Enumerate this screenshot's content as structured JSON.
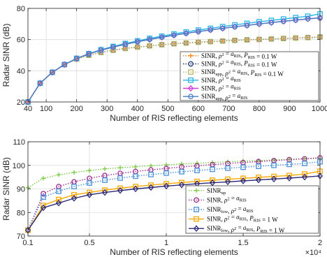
{
  "chart_data": [
    {
      "type": "line",
      "xlabel": "Number of RIS reflecting elements",
      "ylabel": "Radar SINR (dB)",
      "xlim": [
        40,
        1000
      ],
      "ylim": [
        20,
        80
      ],
      "xticks": [
        40,
        100,
        200,
        300,
        400,
        500,
        600,
        700,
        800,
        900,
        1000
      ],
      "yticks": [
        20,
        40,
        60,
        80
      ],
      "grid": true,
      "legend_position": "bottom-right",
      "x": [
        40,
        80,
        120,
        160,
        200,
        240,
        280,
        320,
        360,
        400,
        440,
        480,
        520,
        560,
        600,
        640,
        680,
        720,
        760,
        800,
        840,
        880,
        920,
        960,
        1000
      ],
      "series": [
        {
          "name": "SINR, ρ² = a_RIS, P_RIS = 0.1 W",
          "color": "#ff7f0e",
          "style": "dotted",
          "marker": "plus",
          "values": [
            20,
            32,
            39,
            44,
            47.5,
            50,
            51.8,
            53.2,
            54.3,
            55.2,
            56,
            56.7,
            57.3,
            57.8,
            58.3,
            58.7,
            59.1,
            59.5,
            59.8,
            60.1,
            60.4,
            60.7,
            61,
            61.3,
            61.5
          ]
        },
        {
          "name": "SINR, ρ² = a_RIS, P_RIS = 0.1 W",
          "color": "#1f3a6e",
          "style": "dotted",
          "marker": "circle",
          "values": [
            20,
            32,
            39,
            44,
            47.5,
            50,
            51.8,
            53.2,
            54.3,
            55.2,
            56,
            56.7,
            57.3,
            57.8,
            58.3,
            58.7,
            59.1,
            59.5,
            59.8,
            60.1,
            60.4,
            60.7,
            61,
            61.3,
            61.6
          ]
        },
        {
          "name": "SINR_app, ρ² = a_RIS, P_RIS = 0.1 W",
          "color": "#b8b86a",
          "style": "dotted",
          "marker": "square",
          "values": [
            20,
            32,
            39,
            44,
            47.5,
            50,
            51.8,
            53.2,
            54.3,
            55.2,
            56,
            56.7,
            57.3,
            57.8,
            58.3,
            58.7,
            59.1,
            59.5,
            59.8,
            60.1,
            60.4,
            60.7,
            61,
            61.3,
            61.7
          ]
        },
        {
          "name": "SINR, ρ² = a_RIS",
          "color": "#29b5e8",
          "style": "solid",
          "marker": "square",
          "values": [
            20,
            32,
            39,
            44,
            48,
            51,
            53.5,
            55.6,
            57.5,
            59.2,
            60.8,
            62.2,
            63.6,
            64.9,
            66.1,
            67.2,
            68.3,
            69.4,
            70.4,
            71.4,
            72.3,
            73.2,
            74.1,
            75,
            76.5
          ]
        },
        {
          "name": "SINR, ρ² = a_RIS",
          "color": "#d63ad6",
          "style": "solid",
          "marker": "diamond",
          "values": [
            20,
            32,
            39,
            44,
            47.8,
            50.8,
            53.2,
            55.2,
            57,
            58.6,
            60.1,
            61.5,
            62.8,
            64,
            65.1,
            66.2,
            67.2,
            68.2,
            69.1,
            70,
            70.9,
            71.7,
            72.5,
            73.3,
            74
          ]
        },
        {
          "name": "SINR_app, ρ² = a_RIS",
          "color": "#4a7fc0",
          "style": "solid",
          "marker": "circle",
          "values": [
            20,
            32,
            39,
            44,
            47.8,
            50.8,
            53.2,
            55.2,
            57,
            58.6,
            60.1,
            61.5,
            62.8,
            64,
            65.1,
            66.2,
            67.2,
            68.2,
            69.1,
            70,
            70.9,
            71.7,
            72.5,
            73.3,
            73.8
          ]
        }
      ]
    },
    {
      "type": "line",
      "xlabel": "Number of RIS reflecting elements",
      "ylabel": "Radar SINR (dB)",
      "xlim": [
        0.1,
        2
      ],
      "ylim": [
        70,
        110
      ],
      "xticks": [
        0.1,
        0.5,
        1,
        1.5,
        2
      ],
      "xtick_labels": [
        "0.1",
        "0.5",
        "1",
        "1.5",
        "2"
      ],
      "x_multiplier": "×10⁴",
      "yticks": [
        70,
        80,
        90,
        100,
        110
      ],
      "grid": true,
      "legend_position": "bottom-right",
      "x": [
        0.1,
        0.2,
        0.3,
        0.4,
        0.5,
        0.6,
        0.7,
        0.8,
        0.9,
        1.0,
        1.1,
        1.2,
        1.3,
        1.4,
        1.5,
        1.6,
        1.7,
        1.8,
        1.9,
        2.0
      ],
      "series": [
        {
          "name": "SINR_up",
          "color": "#7ac943",
          "style": "dotted",
          "marker": "plus",
          "values": [
            90.5,
            94.5,
            96,
            97,
            97.8,
            98.5,
            99,
            99.4,
            99.8,
            100.2,
            100.6,
            100.9,
            101.2,
            101.5,
            101.8,
            102,
            102.3,
            102.5,
            102.8,
            103
          ]
        },
        {
          "name": "SINR, ρ² = a_RIS",
          "color": "#9b2f8f",
          "style": "dotted",
          "marker": "circle",
          "values": [
            72.5,
            88,
            91,
            93,
            94.5,
            95.7,
            96.6,
            97.4,
            98.1,
            98.7,
            99.3,
            99.8,
            100.3,
            100.8,
            101.2,
            101.6,
            102,
            102.4,
            102.8,
            103.2
          ]
        },
        {
          "name": "SINR_low, ρ² = a_RIS",
          "color": "#4a90d9",
          "style": "dotted",
          "marker": "square",
          "values": [
            72.5,
            86.5,
            89,
            91,
            92.5,
            93.7,
            94.6,
            95.4,
            96.1,
            96.7,
            97.3,
            97.8,
            98.3,
            98.8,
            99.2,
            99.6,
            100,
            100.4,
            100.8,
            101.5
          ]
        },
        {
          "name": "SINR, ρ² = a_RIS, P_RIS = 1 W",
          "color": "#f5a800",
          "style": "solid",
          "marker": "square",
          "values": [
            72.5,
            83,
            85.5,
            87.5,
            88.5,
            89.5,
            90.3,
            91,
            91.6,
            92.2,
            92.7,
            93.2,
            93.7,
            94.1,
            94.5,
            94.9,
            95.3,
            95.7,
            96.3,
            97.5
          ]
        },
        {
          "name": "SINR_low, ρ² = a_RIS, P_RIS = 1 W",
          "color": "#2e2a7a",
          "style": "solid",
          "marker": "diamond",
          "values": [
            72.5,
            82,
            84,
            86,
            87.5,
            88.5,
            89.3,
            90,
            90.6,
            91.2,
            91.7,
            92.2,
            92.6,
            93,
            93.4,
            93.8,
            94.2,
            94.6,
            95,
            95.5
          ]
        }
      ]
    }
  ],
  "legend1_entries": [
    {
      "base": "SINR",
      "sub": "",
      "rest": ", ρ² = a_RIS, P_RIS = 0.1 W"
    },
    {
      "base": "SINR",
      "sub": "",
      "rest": ", ρ² = a_RIS, P_RIS = 0.1 W"
    },
    {
      "base": "SINR",
      "sub": "app",
      "rest": ", ρ² = a_RIS, P_RIS = 0.1 W"
    },
    {
      "base": "SINR",
      "sub": "",
      "rest": ", ρ² = a_RIS"
    },
    {
      "base": "SINR",
      "sub": "",
      "rest": ", ρ² = a_RIS"
    },
    {
      "base": "SINR",
      "sub": "app",
      "rest": ", ρ² = a_RIS"
    }
  ],
  "legend2_entries": [
    {
      "base": "SINR",
      "sub": "up",
      "rest": ""
    },
    {
      "base": "SINR",
      "sub": "",
      "rest": ", ρ² = a_RIS"
    },
    {
      "base": "SINR",
      "sub": "low",
      "rest": ", ρ² = a_RIS"
    },
    {
      "base": "SINR",
      "sub": "",
      "rest": ", ρ² = a_RIS, P_RIS = 1 W"
    },
    {
      "base": "SINR",
      "sub": "low",
      "rest": ", ρ² = a_RIS, P_RIS = 1 W"
    }
  ]
}
